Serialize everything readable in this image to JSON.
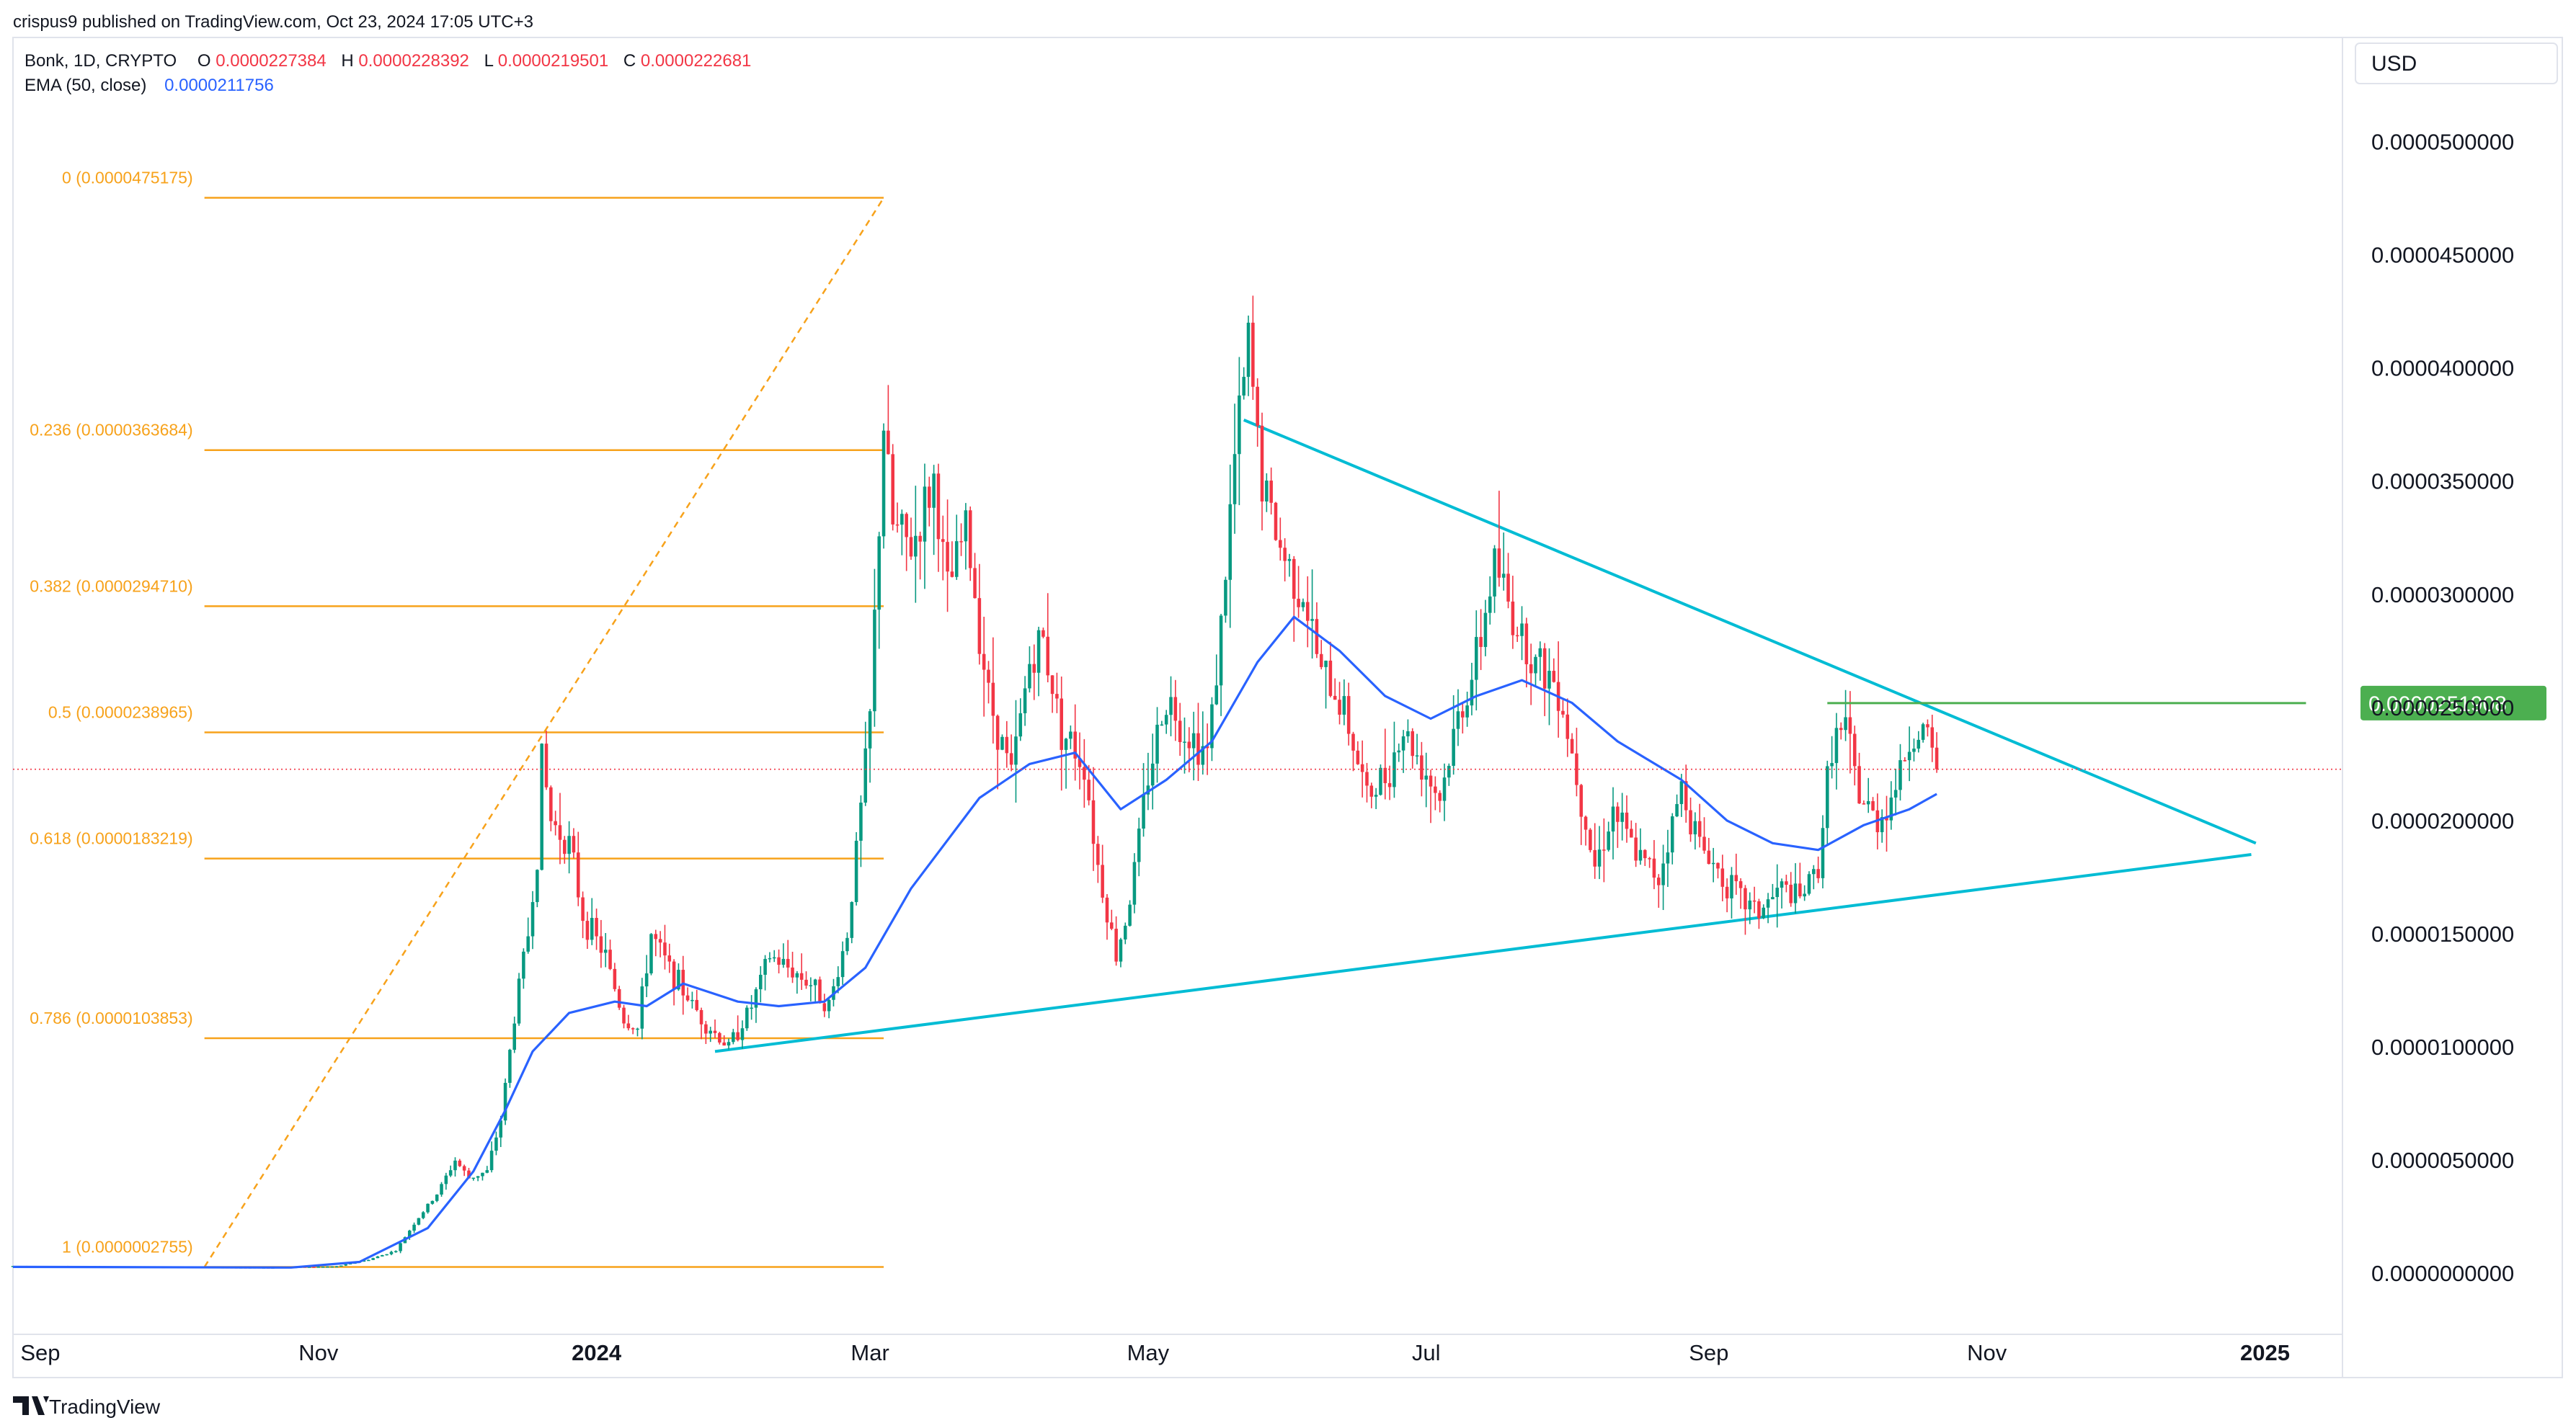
{
  "header": {
    "published": "crispus9 published on TradingView.com, Oct 23, 2024 17:05 UTC+3",
    "symbol": "Bonk, 1D, CRYPTO",
    "ohlc": [
      {
        "label": "O",
        "value": "0.0000227384"
      },
      {
        "label": "H",
        "value": "0.0000228392"
      },
      {
        "label": "L",
        "value": "0.0000219501"
      },
      {
        "label": "C",
        "value": "0.0000222681"
      }
    ],
    "ema_label": "EMA (50, close)",
    "ema_value": "0.0000211756"
  },
  "currency": "USD",
  "branding": "TradingView",
  "colors": {
    "up": "#089981",
    "down": "#f23645",
    "ema": "#2962ff",
    "fib": "#f7a21b",
    "triangle": "#00bcd4",
    "resistance": "#4caf50",
    "last_price": "#f23645",
    "label_green": "#4caf50"
  },
  "chart_data": {
    "type": "candlestick",
    "x_axis": {
      "range": [
        "2023-08-26",
        "2025-01-18"
      ],
      "ticks": [
        {
          "label": "Sep",
          "date": "2023-09-01",
          "bold": false
        },
        {
          "label": "Nov",
          "date": "2023-11-01",
          "bold": false
        },
        {
          "label": "2024",
          "date": "2024-01-01",
          "bold": true
        },
        {
          "label": "Mar",
          "date": "2024-03-01",
          "bold": false
        },
        {
          "label": "May",
          "date": "2024-05-01",
          "bold": false
        },
        {
          "label": "Jul",
          "date": "2024-07-01",
          "bold": false
        },
        {
          "label": "Sep",
          "date": "2024-09-01",
          "bold": false
        },
        {
          "label": "Nov",
          "date": "2024-11-01",
          "bold": false
        },
        {
          "label": "2025",
          "date": "2025-01-01",
          "bold": true
        }
      ]
    },
    "y_axis": {
      "range": [
        -2.7e-06,
        5.46e-05
      ],
      "ticks": [
        "0.0000500000",
        "0.0000450000",
        "0.0000400000",
        "0.0000350000",
        "0.0000300000",
        "0.0000250000",
        "0.0000200000",
        "0.0000150000",
        "0.0000100000",
        "0.0000050000",
        "0.0000000000"
      ]
    },
    "last_price": 2.22681e-05,
    "price_label": {
      "text": "0.0000251908",
      "value": 2.51908e-05
    },
    "fib_levels": [
      {
        "label": "0 (0.0000475175)",
        "value": 4.75175e-05
      },
      {
        "label": "0.236 (0.0000363684)",
        "value": 3.63684e-05
      },
      {
        "label": "0.382 (0.0000294710)",
        "value": 2.9471e-05
      },
      {
        "label": "0.5 (0.0000238965)",
        "value": 2.38965e-05
      },
      {
        "label": "0.618 (0.0000183219)",
        "value": 1.83219e-05
      },
      {
        "label": "0.786 (0.0000103853)",
        "value": 1.03853e-05
      },
      {
        "label": "1 (0.0000002755)",
        "value": 2.755e-07
      }
    ],
    "fib_range": {
      "start": "2023-10-07",
      "end": "2024-03-04"
    },
    "fib_diagonal": [
      [
        "2023-10-07",
        2.755e-07
      ],
      [
        "2024-03-04",
        4.75175e-05
      ]
    ],
    "triangle_upper": [
      [
        "2024-05-22",
        3.77e-05
      ],
      [
        "2024-12-30",
        1.9e-05
      ]
    ],
    "triangle_lower": [
      [
        "2024-01-27",
        9.8e-06
      ],
      [
        "2024-12-29",
        1.85e-05
      ]
    ],
    "resistance_line": [
      [
        "2024-09-27",
        2.51908e-05
      ],
      [
        "2025-01-10",
        2.51908e-05
      ]
    ],
    "ema_path": [
      [
        "2023-08-26",
        2.8e-07
      ],
      [
        "2023-10-26",
        2.5e-07
      ],
      [
        "2023-11-10",
        5e-07
      ],
      [
        "2023-11-25",
        2e-06
      ],
      [
        "2023-12-05",
        4.5e-06
      ],
      [
        "2023-12-12",
        7.2e-06
      ],
      [
        "2023-12-18",
        9.8e-06
      ],
      [
        "2023-12-26",
        1.15e-05
      ],
      [
        "2024-01-05",
        1.2e-05
      ],
      [
        "2024-01-12",
        1.18e-05
      ],
      [
        "2024-01-20",
        1.28e-05
      ],
      [
        "2024-02-01",
        1.2e-05
      ],
      [
        "2024-02-10",
        1.18e-05
      ],
      [
        "2024-02-20",
        1.2e-05
      ],
      [
        "2024-02-29",
        1.35e-05
      ],
      [
        "2024-03-10",
        1.7e-05
      ],
      [
        "2024-03-25",
        2.1e-05
      ],
      [
        "2024-04-05",
        2.25e-05
      ],
      [
        "2024-04-15",
        2.3e-05
      ],
      [
        "2024-04-25",
        2.05e-05
      ],
      [
        "2024-05-05",
        2.18e-05
      ],
      [
        "2024-05-15",
        2.35e-05
      ],
      [
        "2024-05-25",
        2.7e-05
      ],
      [
        "2024-06-02",
        2.9e-05
      ],
      [
        "2024-06-12",
        2.75e-05
      ],
      [
        "2024-06-22",
        2.55e-05
      ],
      [
        "2024-07-02",
        2.45e-05
      ],
      [
        "2024-07-12",
        2.55e-05
      ],
      [
        "2024-07-22",
        2.62e-05
      ],
      [
        "2024-08-02",
        2.52e-05
      ],
      [
        "2024-08-12",
        2.35e-05
      ],
      [
        "2024-08-26",
        2.18e-05
      ],
      [
        "2024-09-05",
        2e-05
      ],
      [
        "2024-09-15",
        1.9e-05
      ],
      [
        "2024-09-25",
        1.87e-05
      ],
      [
        "2024-10-05",
        1.98e-05
      ],
      [
        "2024-10-15",
        2.05e-05
      ],
      [
        "2024-10-21",
        2.11756e-05
      ]
    ],
    "price_path": [
      [
        "2023-08-26",
        3.2e-07
      ],
      [
        "2023-10-20",
        2.5e-07
      ],
      [
        "2023-11-05",
        3e-07
      ],
      [
        "2023-11-12",
        6e-07
      ],
      [
        "2023-11-18",
        1e-06
      ],
      [
        "2023-11-22",
        2.2e-06
      ],
      [
        "2023-11-27",
        3.5e-06
      ],
      [
        "2023-12-01",
        5e-06
      ],
      [
        "2023-12-04",
        4.2e-06
      ],
      [
        "2023-12-08",
        4.5e-06
      ],
      [
        "2023-12-11",
        6.8e-06
      ],
      [
        "2023-12-15",
        1.28e-05
      ],
      [
        "2023-12-17",
        1.5e-05
      ],
      [
        "2023-12-19",
        1.85e-05
      ],
      [
        "2023-12-20",
        2.28e-05
      ],
      [
        "2023-12-22",
        2e-05
      ],
      [
        "2023-12-26",
        1.9e-05
      ],
      [
        "2023-12-29",
        1.58e-05
      ],
      [
        "2024-01-03",
        1.4e-05
      ],
      [
        "2024-01-07",
        1.12e-05
      ],
      [
        "2024-01-10",
        1.08e-05
      ],
      [
        "2024-01-13",
        1.5e-05
      ],
      [
        "2024-01-16",
        1.38e-05
      ],
      [
        "2024-01-20",
        1.25e-05
      ],
      [
        "2024-01-25",
        1.1e-05
      ],
      [
        "2024-01-30",
        1e-05
      ],
      [
        "2024-02-04",
        1.18e-05
      ],
      [
        "2024-02-08",
        1.4e-05
      ],
      [
        "2024-02-12",
        1.35e-05
      ],
      [
        "2024-02-17",
        1.28e-05
      ],
      [
        "2024-02-21",
        1.18e-05
      ],
      [
        "2024-02-25",
        1.5e-05
      ],
      [
        "2024-02-28",
        2.05e-05
      ],
      [
        "2024-03-01",
        2.45e-05
      ],
      [
        "2024-03-04",
        3.75e-05
      ],
      [
        "2024-03-06",
        3.3e-05
      ],
      [
        "2024-03-10",
        3.2e-05
      ],
      [
        "2024-03-15",
        3.5e-05
      ],
      [
        "2024-03-18",
        3e-05
      ],
      [
        "2024-03-22",
        3.3e-05
      ],
      [
        "2024-03-27",
        2.55e-05
      ],
      [
        "2024-04-01",
        2.2e-05
      ],
      [
        "2024-04-05",
        2.7e-05
      ],
      [
        "2024-04-08",
        2.8e-05
      ],
      [
        "2024-04-12",
        2.4e-05
      ],
      [
        "2024-04-17",
        2.25e-05
      ],
      [
        "2024-04-20",
        1.8e-05
      ],
      [
        "2024-04-24",
        1.4e-05
      ],
      [
        "2024-04-27",
        1.65e-05
      ],
      [
        "2024-05-01",
        2.2e-05
      ],
      [
        "2024-05-05",
        2.55e-05
      ],
      [
        "2024-05-09",
        2.4e-05
      ],
      [
        "2024-05-14",
        2.3e-05
      ],
      [
        "2024-05-17",
        2.85e-05
      ],
      [
        "2024-05-20",
        3.6e-05
      ],
      [
        "2024-05-23",
        4.1e-05
      ],
      [
        "2024-05-26",
        3.5e-05
      ],
      [
        "2024-05-30",
        3.2e-05
      ],
      [
        "2024-06-04",
        3e-05
      ],
      [
        "2024-06-08",
        2.65e-05
      ],
      [
        "2024-06-13",
        2.5e-05
      ],
      [
        "2024-06-18",
        2.1e-05
      ],
      [
        "2024-06-22",
        2.2e-05
      ],
      [
        "2024-06-26",
        2.4e-05
      ],
      [
        "2024-06-30",
        2.25e-05
      ],
      [
        "2024-07-04",
        2.1e-05
      ],
      [
        "2024-07-08",
        2.45e-05
      ],
      [
        "2024-07-12",
        2.7e-05
      ],
      [
        "2024-07-16",
        3.15e-05
      ],
      [
        "2024-07-20",
        2.9e-05
      ],
      [
        "2024-07-25",
        2.7e-05
      ],
      [
        "2024-07-30",
        2.6e-05
      ],
      [
        "2024-08-04",
        2.1e-05
      ],
      [
        "2024-08-07",
        1.8e-05
      ],
      [
        "2024-08-11",
        2.05e-05
      ],
      [
        "2024-08-16",
        1.85e-05
      ],
      [
        "2024-08-21",
        1.75e-05
      ],
      [
        "2024-08-26",
        2.15e-05
      ],
      [
        "2024-08-30",
        1.9e-05
      ],
      [
        "2024-09-03",
        1.78e-05
      ],
      [
        "2024-09-08",
        1.65e-05
      ],
      [
        "2024-09-12",
        1.6e-05
      ],
      [
        "2024-09-17",
        1.7e-05
      ],
      [
        "2024-09-21",
        1.65e-05
      ],
      [
        "2024-09-25",
        1.8e-05
      ],
      [
        "2024-09-28",
        2.35e-05
      ],
      [
        "2024-10-01",
        2.4e-05
      ],
      [
        "2024-10-04",
        2.1e-05
      ],
      [
        "2024-10-08",
        2e-05
      ],
      [
        "2024-10-11",
        2.1e-05
      ],
      [
        "2024-10-15",
        2.35e-05
      ],
      [
        "2024-10-18",
        2.4e-05
      ],
      [
        "2024-10-21",
        2.22681e-05
      ]
    ]
  }
}
